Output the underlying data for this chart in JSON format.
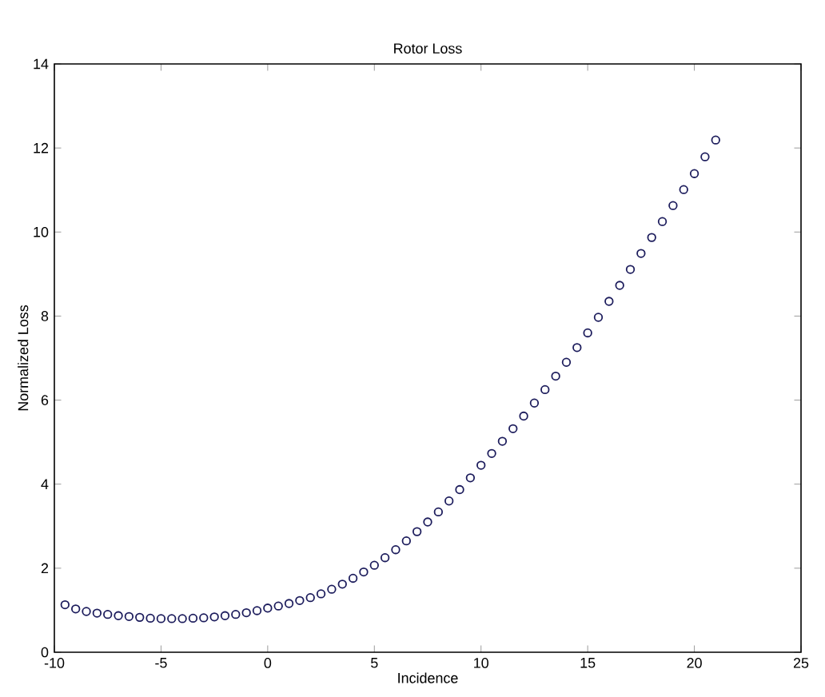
{
  "chart_data": {
    "type": "scatter",
    "title": "Rotor Loss",
    "xlabel": "Incidence",
    "ylabel": "Normalized Loss",
    "x": [
      -9.5,
      -9,
      -8.5,
      -8,
      -7.5,
      -7,
      -6.5,
      -6,
      -5.5,
      -5,
      -4.5,
      -4,
      -3.5,
      -3,
      -2.5,
      -2,
      -1.5,
      -1,
      -0.5,
      0,
      0.5,
      1,
      1.5,
      2,
      2.5,
      3,
      3.5,
      4,
      4.5,
      5,
      5.5,
      6,
      6.5,
      7,
      7.5,
      8,
      8.5,
      9,
      9.5,
      10,
      10.5,
      11,
      11.5,
      12,
      12.5,
      13,
      13.5,
      14,
      14.5,
      15,
      15.5,
      16,
      16.5,
      17,
      17.5,
      18,
      18.5,
      19,
      19.5,
      20,
      20.5,
      21
    ],
    "series": [
      {
        "color": "#1c1c5c",
        "values": [
          1.13,
          1.03,
          0.97,
          0.93,
          0.9,
          0.87,
          0.85,
          0.83,
          0.81,
          0.8,
          0.8,
          0.8,
          0.81,
          0.82,
          0.84,
          0.87,
          0.9,
          0.94,
          0.99,
          1.05,
          1.1,
          1.16,
          1.23,
          1.3,
          1.39,
          1.5,
          1.62,
          1.76,
          1.91,
          2.07,
          2.25,
          2.44,
          2.65,
          2.87,
          3.1,
          3.34,
          3.6,
          3.87,
          4.15,
          4.45,
          4.73,
          5.02,
          5.32,
          5.62,
          5.93,
          6.25,
          6.57,
          6.9,
          7.25,
          7.6,
          7.97,
          8.35,
          8.73,
          9.11,
          9.49,
          9.87,
          10.25,
          10.63,
          11.01,
          11.39,
          11.79,
          12.19
        ]
      }
    ],
    "xlim": [
      -10,
      25
    ],
    "xticks": [
      -10,
      -5,
      0,
      5,
      10,
      15,
      20,
      25
    ],
    "ylim": [
      0,
      14
    ],
    "yticks": [
      0,
      2,
      4,
      6,
      8,
      10,
      12,
      14
    ],
    "marker": "circle",
    "grid": false
  }
}
